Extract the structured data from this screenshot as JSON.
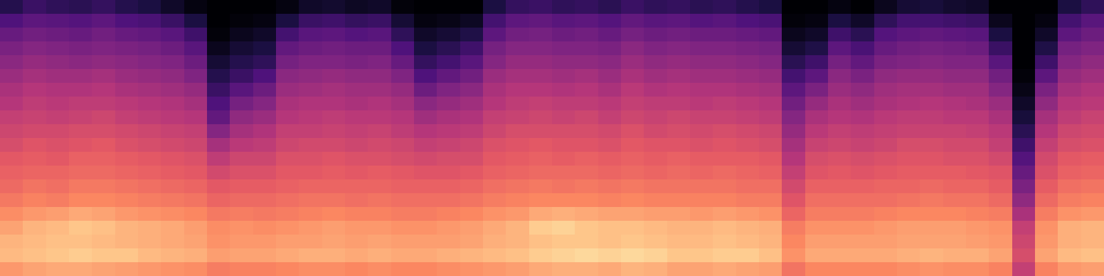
{
  "chart_data": {
    "type": "heatmap",
    "color": "magma",
    "tick_labels": false,
    "grid": false,
    "zlim": [
      -80,
      0
    ],
    "cells": [
      [
        -68,
        -60,
        -55,
        -51,
        -48,
        -45,
        -42,
        -40,
        -37,
        -35,
        -33,
        -30,
        -28,
        -26,
        -23,
        -19,
        -15,
        -12,
        -11,
        -17
      ],
      [
        -64,
        -57,
        -53,
        -49,
        -46,
        -43,
        -40,
        -38,
        -36,
        -34,
        -31,
        -29,
        -27,
        -24,
        -21,
        -17,
        -12,
        -11,
        -10,
        -15
      ],
      [
        -66,
        -58,
        -54,
        -50,
        -47,
        -44,
        -41,
        -39,
        -37,
        -34,
        -32,
        -30,
        -27,
        -25,
        -22,
        -16,
        -11,
        -10,
        -9,
        -14
      ],
      [
        -67,
        -59,
        -55,
        -51,
        -48,
        -44,
        -41,
        -38,
        -36,
        -33,
        -31,
        -28,
        -26,
        -23,
        -20,
        -14,
        -9,
        -10,
        -8,
        -14
      ],
      [
        -65,
        -57,
        -53,
        -50,
        -47,
        -43,
        -40,
        -38,
        -35,
        -33,
        -30,
        -28,
        -26,
        -23,
        -20,
        -15,
        -10,
        -11,
        -9,
        -15
      ],
      [
        -68,
        -60,
        -55,
        -51,
        -48,
        -45,
        -42,
        -39,
        -37,
        -34,
        -32,
        -29,
        -27,
        -24,
        -21,
        -17,
        -12,
        -12,
        -9,
        -16
      ],
      [
        -70,
        -61,
        -56,
        -52,
        -49,
        -46,
        -43,
        -40,
        -38,
        -35,
        -33,
        -30,
        -28,
        -25,
        -22,
        -18,
        -13,
        -13,
        -11,
        -17
      ],
      [
        -74,
        -64,
        -58,
        -54,
        -50,
        -47,
        -44,
        -41,
        -39,
        -36,
        -34,
        -31,
        -29,
        -26,
        -23,
        -19,
        -14,
        -14,
        -12,
        -18
      ],
      [
        -78,
        -70,
        -63,
        -58,
        -54,
        -50,
        -46,
        -43,
        -40,
        -37,
        -35,
        -32,
        -30,
        -27,
        -24,
        -20,
        -16,
        -15,
        -13,
        -19
      ],
      [
        -80,
        -80,
        -79,
        -76,
        -72,
        -68,
        -64,
        -60,
        -56,
        -49,
        -43,
        -38,
        -34,
        -30,
        -27,
        -23,
        -19,
        -18,
        -16,
        -22
      ],
      [
        -80,
        -79,
        -76,
        -72,
        -68,
        -64,
        -58,
        -52,
        -47,
        -43,
        -39,
        -35,
        -32,
        -29,
        -26,
        -22,
        -18,
        -17,
        -15,
        -21
      ],
      [
        -80,
        -78,
        -74,
        -70,
        -66,
        -60,
        -54,
        -49,
        -45,
        -41,
        -38,
        -35,
        -32,
        -29,
        -26,
        -23,
        -19,
        -17,
        -15,
        -21
      ],
      [
        -78,
        -70,
        -62,
        -56,
        -52,
        -48,
        -45,
        -42,
        -40,
        -37,
        -35,
        -32,
        -30,
        -28,
        -25,
        -22,
        -18,
        -16,
        -14,
        -20
      ],
      [
        -74,
        -64,
        -58,
        -54,
        -50,
        -47,
        -44,
        -41,
        -39,
        -37,
        -34,
        -32,
        -30,
        -27,
        -24,
        -21,
        -17,
        -16,
        -13,
        -19
      ],
      [
        -73,
        -63,
        -57,
        -53,
        -50,
        -46,
        -43,
        -41,
        -38,
        -36,
        -34,
        -31,
        -29,
        -27,
        -24,
        -20,
        -16,
        -15,
        -13,
        -19
      ],
      [
        -75,
        -65,
        -59,
        -54,
        -51,
        -47,
        -44,
        -42,
        -39,
        -37,
        -35,
        -32,
        -30,
        -27,
        -25,
        -21,
        -17,
        -16,
        -14,
        -20
      ],
      [
        -74,
        -64,
        -58,
        -54,
        -50,
        -47,
        -44,
        -41,
        -39,
        -36,
        -34,
        -32,
        -29,
        -27,
        -24,
        -21,
        -17,
        -15,
        -13,
        -19
      ],
      [
        -79,
        -72,
        -66,
        -60,
        -55,
        -50,
        -46,
        -43,
        -40,
        -38,
        -35,
        -33,
        -30,
        -28,
        -25,
        -22,
        -18,
        -16,
        -14,
        -20
      ],
      [
        -80,
        -78,
        -74,
        -70,
        -65,
        -60,
        -54,
        -48,
        -44,
        -40,
        -37,
        -34,
        -31,
        -28,
        -25,
        -22,
        -18,
        -16,
        -14,
        -20
      ],
      [
        -80,
        -77,
        -72,
        -67,
        -62,
        -56,
        -50,
        -46,
        -42,
        -39,
        -36,
        -33,
        -31,
        -28,
        -25,
        -21,
        -17,
        -16,
        -13,
        -19
      ],
      [
        -80,
        -75,
        -69,
        -63,
        -58,
        -53,
        -48,
        -44,
        -41,
        -38,
        -35,
        -33,
        -30,
        -27,
        -24,
        -20,
        -16,
        -15,
        -12,
        -18
      ],
      [
        -70,
        -62,
        -57,
        -52,
        -49,
        -45,
        -42,
        -40,
        -37,
        -35,
        -32,
        -30,
        -28,
        -25,
        -22,
        -18,
        -14,
        -13,
        -11,
        -17
      ],
      [
        -65,
        -57,
        -53,
        -49,
        -46,
        -43,
        -40,
        -38,
        -36,
        -33,
        -31,
        -29,
        -27,
        -24,
        -21,
        -17,
        -12,
        -12,
        -10,
        -16
      ],
      [
        -64,
        -56,
        -52,
        -49,
        -46,
        -43,
        -40,
        -37,
        -35,
        -33,
        -30,
        -28,
        -26,
        -23,
        -20,
        -14,
        -8,
        -10,
        -8,
        -14
      ],
      [
        -66,
        -58,
        -54,
        -50,
        -47,
        -44,
        -41,
        -38,
        -36,
        -33,
        -31,
        -29,
        -26,
        -24,
        -20,
        -13,
        -7,
        -9,
        -7,
        -13
      ],
      [
        -65,
        -57,
        -53,
        -50,
        -47,
        -43,
        -40,
        -38,
        -35,
        -33,
        -31,
        -28,
        -26,
        -23,
        -20,
        -14,
        -9,
        -9,
        -6,
        -13
      ],
      [
        -67,
        -59,
        -55,
        -51,
        -48,
        -45,
        -42,
        -39,
        -37,
        -34,
        -32,
        -29,
        -27,
        -24,
        -21,
        -15,
        -10,
        -10,
        -7,
        -14
      ],
      [
        -64,
        -56,
        -52,
        -48,
        -45,
        -42,
        -39,
        -37,
        -35,
        -32,
        -30,
        -28,
        -26,
        -23,
        -20,
        -15,
        -10,
        -9,
        -6,
        -12
      ],
      [
        -66,
        -58,
        -54,
        -50,
        -47,
        -44,
        -41,
        -38,
        -36,
        -34,
        -31,
        -29,
        -27,
        -24,
        -21,
        -16,
        -11,
        -10,
        -7,
        -13
      ],
      [
        -65,
        -57,
        -53,
        -49,
        -46,
        -43,
        -40,
        -38,
        -35,
        -33,
        -31,
        -28,
        -26,
        -24,
        -21,
        -16,
        -12,
        -11,
        -9,
        -15
      ],
      [
        -67,
        -59,
        -54,
        -50,
        -47,
        -44,
        -41,
        -39,
        -36,
        -34,
        -32,
        -29,
        -27,
        -24,
        -21,
        -17,
        -12,
        -11,
        -9,
        -15
      ],
      [
        -66,
        -58,
        -54,
        -50,
        -47,
        -44,
        -41,
        -38,
        -36,
        -33,
        -31,
        -29,
        -26,
        -24,
        -21,
        -16,
        -11,
        -10,
        -8,
        -14
      ],
      [
        -68,
        -60,
        -55,
        -51,
        -48,
        -45,
        -42,
        -39,
        -37,
        -34,
        -32,
        -29,
        -27,
        -25,
        -22,
        -17,
        -12,
        -11,
        -8,
        -15
      ],
      [
        -70,
        -61,
        -56,
        -52,
        -49,
        -46,
        -43,
        -40,
        -38,
        -35,
        -33,
        -30,
        -28,
        -25,
        -22,
        -18,
        -13,
        -12,
        -10,
        -16
      ],
      [
        -80,
        -79,
        -76,
        -72,
        -67,
        -62,
        -57,
        -53,
        -49,
        -46,
        -43,
        -40,
        -37,
        -34,
        -31,
        -27,
        -22,
        -20,
        -18,
        -24
      ],
      [
        -80,
        -78,
        -74,
        -69,
        -63,
        -57,
        -51,
        -46,
        -42,
        -39,
        -36,
        -33,
        -31,
        -28,
        -25,
        -22,
        -18,
        -16,
        -14,
        -20
      ],
      [
        -78,
        -70,
        -63,
        -57,
        -52,
        -48,
        -45,
        -42,
        -40,
        -37,
        -35,
        -32,
        -30,
        -28,
        -25,
        -22,
        -18,
        -16,
        -14,
        -20
      ],
      [
        -80,
        -74,
        -67,
        -61,
        -56,
        -51,
        -47,
        -44,
        -41,
        -38,
        -36,
        -33,
        -31,
        -28,
        -25,
        -22,
        -18,
        -16,
        -14,
        -20
      ],
      [
        -76,
        -66,
        -59,
        -55,
        -51,
        -47,
        -44,
        -42,
        -39,
        -37,
        -35,
        -32,
        -30,
        -27,
        -25,
        -21,
        -17,
        -16,
        -14,
        -20
      ],
      [
        -72,
        -62,
        -57,
        -53,
        -50,
        -46,
        -43,
        -41,
        -38,
        -36,
        -33,
        -31,
        -29,
        -27,
        -24,
        -20,
        -16,
        -15,
        -13,
        -19
      ],
      [
        -71,
        -62,
        -56,
        -52,
        -49,
        -46,
        -43,
        -40,
        -38,
        -36,
        -33,
        -31,
        -29,
        -26,
        -23,
        -20,
        -16,
        -15,
        -12,
        -18
      ],
      [
        -73,
        -63,
        -57,
        -53,
        -50,
        -47,
        -44,
        -41,
        -39,
        -36,
        -34,
        -32,
        -29,
        -27,
        -24,
        -20,
        -16,
        -15,
        -13,
        -19
      ],
      [
        -74,
        -64,
        -58,
        -54,
        -50,
        -47,
        -44,
        -42,
        -39,
        -37,
        -34,
        -32,
        -30,
        -27,
        -24,
        -21,
        -17,
        -16,
        -13,
        -19
      ],
      [
        -80,
        -76,
        -70,
        -64,
        -58,
        -53,
        -49,
        -45,
        -42,
        -39,
        -37,
        -34,
        -31,
        -29,
        -26,
        -22,
        -18,
        -17,
        -15,
        -21
      ],
      [
        -80,
        -80,
        -80,
        -80,
        -80,
        -79,
        -77,
        -74,
        -71,
        -67,
        -63,
        -59,
        -55,
        -51,
        -47,
        -42,
        -37,
        -35,
        -33,
        -37
      ],
      [
        -80,
        -78,
        -74,
        -69,
        -63,
        -57,
        -51,
        -47,
        -43,
        -40,
        -37,
        -34,
        -32,
        -29,
        -26,
        -22,
        -18,
        -17,
        -15,
        -21
      ],
      [
        -70,
        -62,
        -57,
        -52,
        -49,
        -46,
        -43,
        -40,
        -38,
        -35,
        -33,
        -30,
        -28,
        -25,
        -22,
        -18,
        -13,
        -13,
        -11,
        -17
      ],
      [
        -66,
        -58,
        -54,
        -50,
        -47,
        -44,
        -41,
        -39,
        -36,
        -34,
        -32,
        -29,
        -27,
        -24,
        -21,
        -17,
        -12,
        -12,
        -10,
        -16
      ]
    ]
  }
}
